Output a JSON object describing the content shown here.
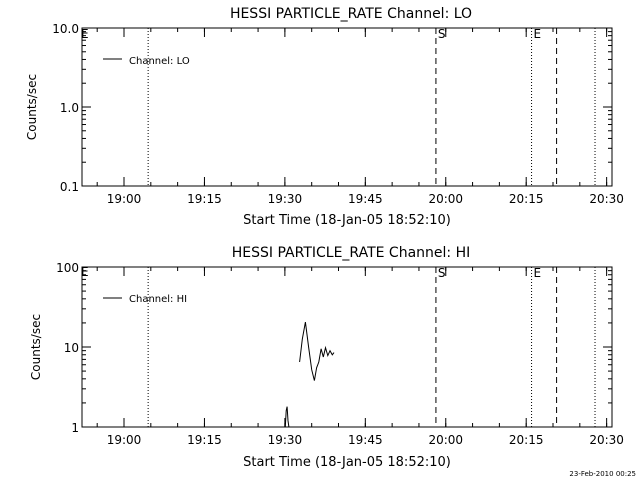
{
  "footer": {
    "timestamp": "23-Feb-2010 00:25"
  },
  "chart_data": [
    {
      "type": "line",
      "title": "HESSI PARTICLE_RATE Channel: LO",
      "xlabel": "Start Time (18-Jan-05 18:52:10)",
      "ylabel": "Counts/sec",
      "yscale": "log",
      "xlim": [
        "18:52:10",
        "20:31:00"
      ],
      "ylim": [
        0.1,
        10.0
      ],
      "xticks": [
        "19:00",
        "19:15",
        "19:30",
        "19:45",
        "20:00",
        "20:15",
        "20:30"
      ],
      "yticks": [
        "0.1",
        "1.0",
        "10.0"
      ],
      "legend": {
        "position": "top-left",
        "entries": [
          "Channel: LO"
        ]
      },
      "series": [
        {
          "name": "Channel: LO",
          "x": [],
          "y": []
        }
      ],
      "vlines": [
        {
          "x": "19:04:30",
          "style": "dotted",
          "label": ""
        },
        {
          "x": "19:58:10",
          "style": "dashed",
          "label": "S"
        },
        {
          "x": "20:16:00",
          "style": "dotted",
          "label": "E"
        },
        {
          "x": "20:20:40",
          "style": "dashed",
          "label": ""
        },
        {
          "x": "20:27:50",
          "style": "dotted",
          "label": ""
        }
      ],
      "edge_label": "E",
      "grid": false
    },
    {
      "type": "line",
      "title": "HESSI PARTICLE_RATE Channel: HI",
      "xlabel": "Start Time (18-Jan-05 18:52:10)",
      "ylabel": "Counts/sec",
      "yscale": "log",
      "xlim": [
        "18:52:10",
        "20:31:00"
      ],
      "ylim": [
        1,
        100
      ],
      "xticks": [
        "19:00",
        "19:15",
        "19:30",
        "19:45",
        "20:00",
        "20:15",
        "20:30"
      ],
      "yticks": [
        "1",
        "10",
        "100"
      ],
      "legend": {
        "position": "top-left",
        "entries": [
          "Channel: HI"
        ]
      },
      "series": [
        {
          "name": "Channel: HI",
          "segments": [
            {
              "x": [
                "19:30:05",
                "19:30:15",
                "19:30:25",
                "19:30:35",
                "19:30:45"
              ],
              "y": [
                1.0,
                1.6,
                1.8,
                1.2,
                1.0
              ]
            },
            {
              "x": [
                "19:32:45",
                "19:33:15",
                "19:33:50",
                "19:34:25",
                "19:35:00",
                "19:35:30",
                "19:35:55",
                "19:36:20",
                "19:36:45",
                "19:37:10",
                "19:37:35",
                "19:38:00",
                "19:38:25",
                "19:38:50",
                "19:39:10"
              ],
              "y": [
                6.5,
                12.5,
                20.5,
                10.0,
                5.2,
                3.8,
                5.5,
                6.5,
                9.5,
                7.5,
                9.8,
                7.8,
                9.0,
                8.0,
                8.5
              ]
            }
          ]
        }
      ],
      "vlines": [
        {
          "x": "19:04:30",
          "style": "dotted",
          "label": ""
        },
        {
          "x": "19:58:10",
          "style": "dashed",
          "label": "S"
        },
        {
          "x": "20:16:00",
          "style": "dotted",
          "label": "E"
        },
        {
          "x": "20:20:40",
          "style": "dashed",
          "label": ""
        },
        {
          "x": "20:27:50",
          "style": "dotted",
          "label": ""
        }
      ],
      "edge_label": "E",
      "grid": false
    }
  ]
}
